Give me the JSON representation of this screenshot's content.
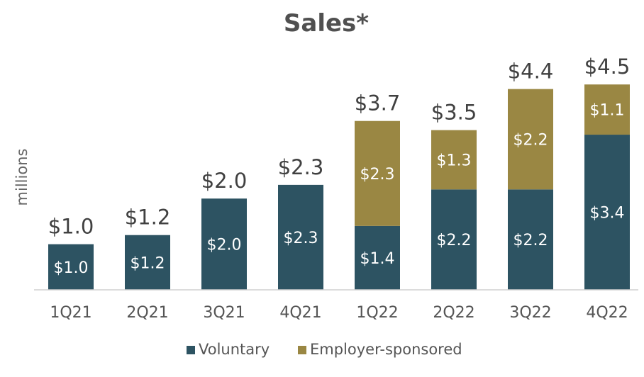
{
  "chart_data": {
    "type": "bar",
    "stacked": true,
    "title": "Sales*",
    "ylabel": "millions",
    "xlabel": "",
    "categories": [
      "1Q21",
      "2Q21",
      "3Q21",
      "4Q21",
      "1Q22",
      "2Q22",
      "3Q22",
      "4Q22"
    ],
    "series": [
      {
        "name": "Voluntary",
        "color": "#2d5362",
        "values": [
          1.0,
          1.2,
          2.0,
          2.3,
          1.4,
          2.2,
          2.2,
          3.4
        ],
        "labels": [
          "$1.0",
          "$1.2",
          "$2.0",
          "$2.3",
          "$1.4",
          "$2.2",
          "$2.2",
          "$3.4"
        ]
      },
      {
        "name": "Employer-sponsored",
        "color": "#9a8743",
        "values": [
          0,
          0,
          0,
          0,
          2.3,
          1.3,
          2.2,
          1.1
        ],
        "labels": [
          "",
          "",
          "",
          "",
          "$2.3",
          "$1.3",
          "$2.2",
          "$1.1"
        ]
      }
    ],
    "totals": [
      1.0,
      1.2,
      2.0,
      2.3,
      3.7,
      3.5,
      4.4,
      4.5
    ],
    "total_labels": [
      "$1.0",
      "$1.2",
      "$2.0",
      "$2.3",
      "$3.7",
      "$3.5",
      "$4.4",
      "$4.5"
    ],
    "ylim": [
      0,
      4.5
    ],
    "grid": false,
    "legend": "bottom-center"
  }
}
